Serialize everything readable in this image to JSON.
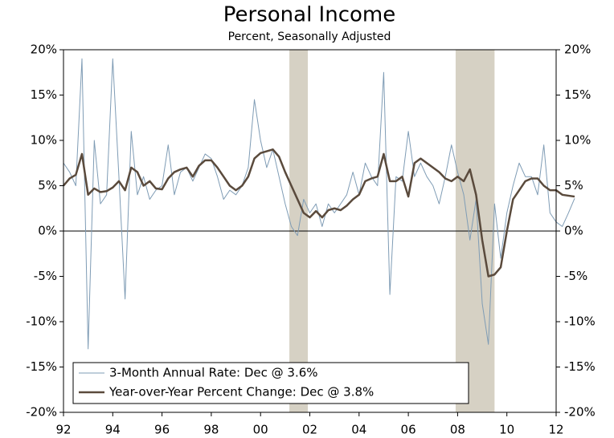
{
  "chart_data": {
    "type": "line",
    "title": "Personal Income",
    "subtitle": "Percent, Seasonally Adjusted",
    "x": [
      1992,
      1992.25,
      1992.5,
      1992.75,
      1993,
      1993.25,
      1993.5,
      1993.75,
      1994,
      1994.25,
      1994.5,
      1994.75,
      1995,
      1995.25,
      1995.5,
      1995.75,
      1996,
      1996.25,
      1996.5,
      1996.75,
      1997,
      1997.25,
      1997.5,
      1997.75,
      1998,
      1998.25,
      1998.5,
      1998.75,
      1999,
      1999.25,
      1999.5,
      1999.75,
      2000,
      2000.25,
      2000.5,
      2000.75,
      2001,
      2001.25,
      2001.5,
      2001.75,
      2002,
      2002.25,
      2002.5,
      2002.75,
      2003,
      2003.25,
      2003.5,
      2003.75,
      2004,
      2004.25,
      2004.5,
      2004.75,
      2005,
      2005.25,
      2005.5,
      2005.75,
      2006,
      2006.25,
      2006.5,
      2006.75,
      2007,
      2007.25,
      2007.5,
      2007.75,
      2008,
      2008.25,
      2008.5,
      2008.75,
      2009,
      2009.25,
      2009.5,
      2009.75,
      2010,
      2010.25,
      2010.5,
      2010.75,
      2011,
      2011.25,
      2011.5,
      2011.75,
      2012,
      2012.25,
      2012.5,
      2012.75
    ],
    "series": [
      {
        "name": "3-Month Annual Rate: Dec @ 3.6%",
        "color": "#7f9cb5",
        "width": 1,
        "values": [
          7.5,
          6.5,
          5.0,
          19.0,
          -13.0,
          10.0,
          3.0,
          4.0,
          19.0,
          6.0,
          -7.5,
          11.0,
          4.0,
          6.0,
          3.5,
          4.5,
          5.0,
          9.5,
          4.0,
          6.5,
          7.0,
          5.5,
          7.0,
          8.5,
          8.0,
          6.0,
          3.5,
          4.5,
          4.0,
          5.0,
          7.0,
          14.5,
          10.0,
          7.0,
          9.0,
          6.0,
          3.0,
          0.5,
          -0.5,
          3.5,
          2.0,
          3.0,
          0.5,
          3.0,
          2.0,
          3.0,
          4.0,
          6.5,
          4.0,
          7.5,
          6.0,
          5.0,
          17.5,
          -7.0,
          6.0,
          5.5,
          11.0,
          6.0,
          7.5,
          6.0,
          5.0,
          3.0,
          6.0,
          9.5,
          6.5,
          4.0,
          -1.0,
          3.5,
          -8.0,
          -12.5,
          3.0,
          -3.0,
          2.0,
          5.0,
          7.5,
          6.0,
          6.0,
          4.0,
          9.5,
          2.0,
          1.0,
          0.5,
          2.0,
          3.6
        ]
      },
      {
        "name": "Year-over-Year Percent Change: Dec @ 3.8%",
        "color": "#5a4a3c",
        "width": 2.5,
        "values": [
          5.0,
          5.8,
          6.2,
          8.5,
          4.0,
          4.7,
          4.3,
          4.4,
          4.8,
          5.5,
          4.5,
          7.0,
          6.5,
          5.0,
          5.5,
          4.7,
          4.6,
          5.8,
          6.5,
          6.8,
          7.0,
          6.0,
          7.2,
          7.8,
          7.8,
          7.0,
          6.0,
          5.0,
          4.5,
          5.0,
          6.0,
          8.0,
          8.6,
          8.8,
          9.0,
          8.2,
          6.5,
          5.0,
          3.5,
          2.0,
          1.5,
          2.2,
          1.5,
          2.3,
          2.5,
          2.3,
          2.8,
          3.5,
          4.0,
          5.5,
          5.8,
          6.0,
          8.5,
          5.5,
          5.5,
          6.0,
          3.8,
          7.5,
          8.0,
          7.5,
          7.0,
          6.5,
          5.8,
          5.5,
          6.0,
          5.5,
          6.8,
          4.0,
          -1.0,
          -5.0,
          -4.8,
          -4.0,
          0.0,
          3.5,
          4.5,
          5.5,
          5.8,
          5.8,
          5.0,
          4.5,
          4.5,
          4.0,
          3.9,
          3.8
        ]
      }
    ],
    "recessions": [
      [
        2001.17,
        2001.92
      ],
      [
        2007.92,
        2009.5
      ]
    ],
    "recession_color": "#d6d1c4",
    "xlim": [
      1992,
      2012
    ],
    "xticks": [
      {
        "value": 1992,
        "label": "92"
      },
      {
        "value": 1994,
        "label": "94"
      },
      {
        "value": 1996,
        "label": "96"
      },
      {
        "value": 1998,
        "label": "98"
      },
      {
        "value": 2000,
        "label": "00"
      },
      {
        "value": 2002,
        "label": "02"
      },
      {
        "value": 2004,
        "label": "04"
      },
      {
        "value": 2006,
        "label": "06"
      },
      {
        "value": 2008,
        "label": "08"
      },
      {
        "value": 2010,
        "label": "10"
      },
      {
        "value": 2012,
        "label": "12"
      }
    ],
    "ylim": [
      -20,
      20
    ],
    "yticks": [
      {
        "value": -20,
        "label": "-20%"
      },
      {
        "value": -15,
        "label": "-15%"
      },
      {
        "value": -10,
        "label": "-10%"
      },
      {
        "value": -5,
        "label": "-5%"
      },
      {
        "value": 0,
        "label": "0%"
      },
      {
        "value": 5,
        "label": "5%"
      },
      {
        "value": 10,
        "label": "10%"
      },
      {
        "value": 15,
        "label": "15%"
      },
      {
        "value": 20,
        "label": "20%"
      }
    ],
    "legend": "lower-left"
  }
}
